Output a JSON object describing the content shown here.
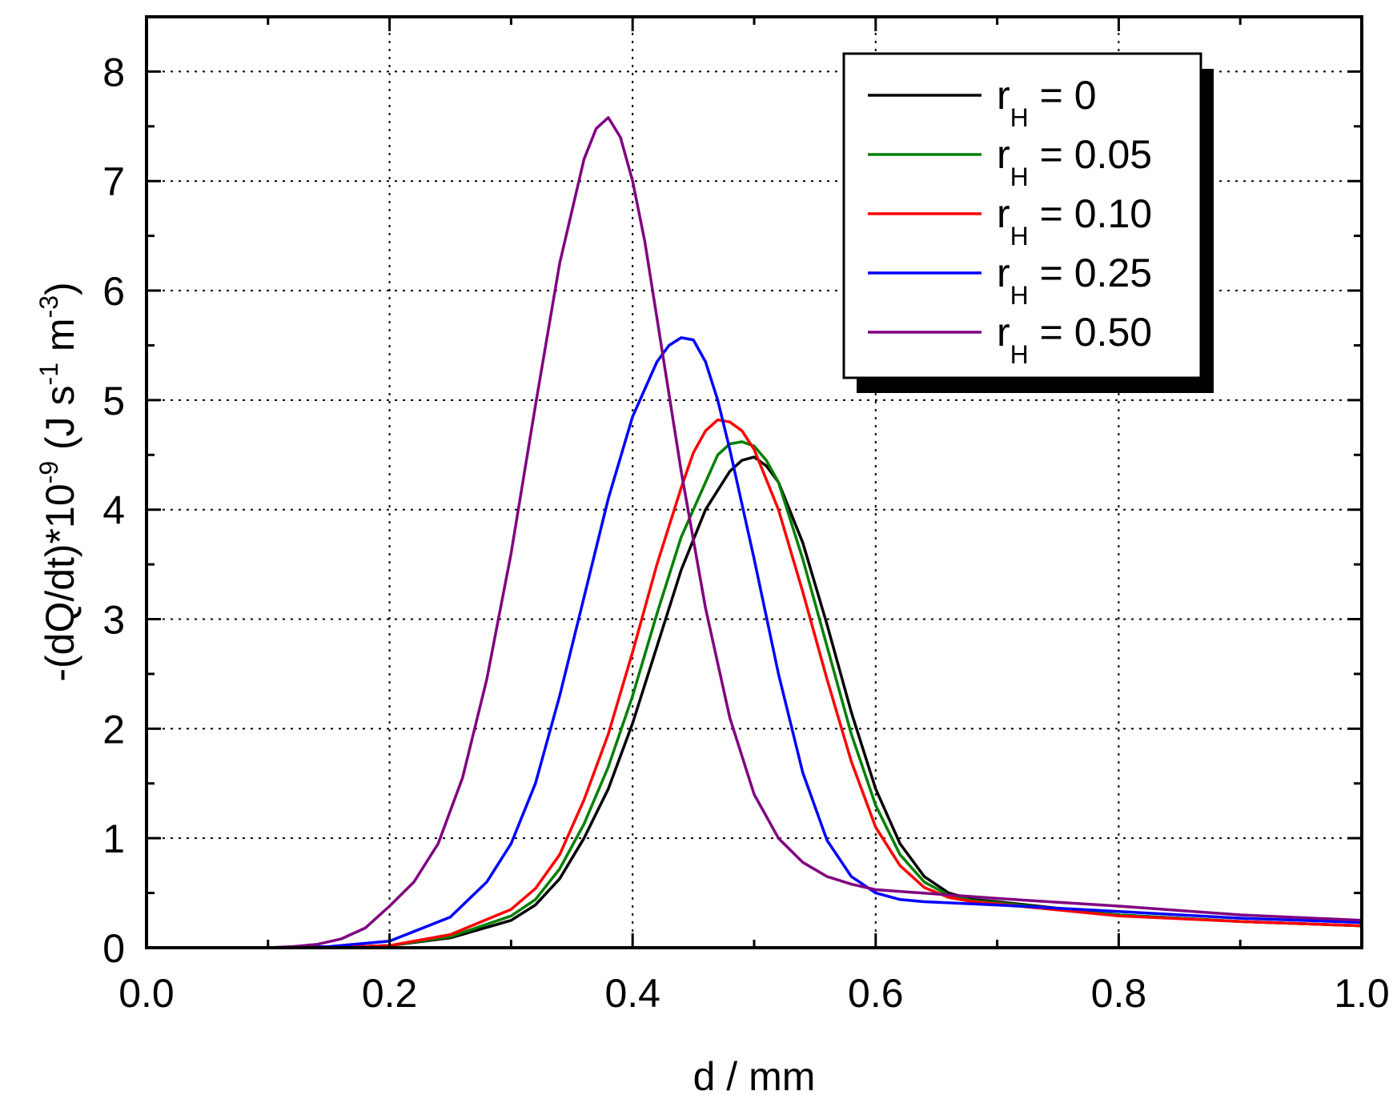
{
  "chart_data": {
    "type": "line",
    "xlabel": "d / mm",
    "ylabel": {
      "base": "-(dQ/dt)*10",
      "exp1": "-9",
      "mid": " (J s",
      "exp2": "-1",
      "mid2": " m",
      "exp3": "-3",
      "end": ")"
    },
    "xlim": [
      0.0,
      1.0
    ],
    "ylim": [
      0,
      8.5
    ],
    "xticks": [
      0.0,
      0.2,
      0.4,
      0.6,
      0.8,
      1.0
    ],
    "xtick_labels": [
      "0.0",
      "0.2",
      "0.4",
      "0.6",
      "0.8",
      "1.0"
    ],
    "yticks": [
      0,
      1,
      2,
      3,
      4,
      5,
      6,
      7,
      8
    ],
    "ytick_labels": [
      "0",
      "1",
      "2",
      "3",
      "4",
      "5",
      "6",
      "7",
      "8"
    ],
    "grid": true,
    "legend_position": "top-right",
    "series": [
      {
        "name": "r_H = 0",
        "label_base": "r",
        "label_sub": "H",
        "label_rest": " = 0",
        "color": "#000000",
        "x": [
          0.0,
          0.1,
          0.15,
          0.2,
          0.25,
          0.3,
          0.32,
          0.34,
          0.36,
          0.38,
          0.4,
          0.42,
          0.44,
          0.46,
          0.48,
          0.49,
          0.5,
          0.51,
          0.52,
          0.54,
          0.56,
          0.58,
          0.6,
          0.62,
          0.64,
          0.66,
          0.68,
          0.7,
          0.8,
          0.9,
          1.0
        ],
        "y": [
          0.0,
          0.0,
          0.0,
          0.02,
          0.09,
          0.25,
          0.39,
          0.63,
          1.0,
          1.45,
          2.05,
          2.75,
          3.45,
          4.0,
          4.35,
          4.45,
          4.48,
          4.4,
          4.25,
          3.7,
          2.95,
          2.15,
          1.45,
          0.95,
          0.65,
          0.5,
          0.44,
          0.42,
          0.3,
          0.24,
          0.2
        ]
      },
      {
        "name": "r_H = 0.05",
        "label_base": "r",
        "label_sub": "H",
        "label_rest": " = 0.05",
        "color": "#008000",
        "x": [
          0.0,
          0.1,
          0.15,
          0.2,
          0.25,
          0.3,
          0.32,
          0.34,
          0.36,
          0.38,
          0.4,
          0.42,
          0.44,
          0.46,
          0.47,
          0.48,
          0.49,
          0.5,
          0.51,
          0.52,
          0.54,
          0.56,
          0.58,
          0.6,
          0.62,
          0.64,
          0.66,
          0.68,
          0.7,
          0.8,
          0.9,
          1.0
        ],
        "y": [
          0.0,
          0.0,
          0.0,
          0.02,
          0.1,
          0.29,
          0.44,
          0.72,
          1.13,
          1.65,
          2.3,
          3.05,
          3.75,
          4.25,
          4.5,
          4.6,
          4.62,
          4.58,
          4.45,
          4.25,
          3.55,
          2.75,
          1.95,
          1.3,
          0.85,
          0.6,
          0.48,
          0.43,
          0.41,
          0.3,
          0.24,
          0.2
        ]
      },
      {
        "name": "r_H = 0.10",
        "label_base": "r",
        "label_sub": "H",
        "label_rest": " = 0.10",
        "color": "#ff0000",
        "x": [
          0.0,
          0.1,
          0.15,
          0.2,
          0.25,
          0.3,
          0.32,
          0.34,
          0.36,
          0.38,
          0.4,
          0.42,
          0.44,
          0.45,
          0.46,
          0.47,
          0.48,
          0.49,
          0.5,
          0.52,
          0.54,
          0.56,
          0.58,
          0.6,
          0.62,
          0.64,
          0.66,
          0.68,
          0.7,
          0.8,
          0.9,
          1.0
        ],
        "y": [
          0.0,
          0.0,
          0.0,
          0.02,
          0.12,
          0.35,
          0.54,
          0.85,
          1.35,
          1.95,
          2.7,
          3.5,
          4.2,
          4.52,
          4.72,
          4.82,
          4.8,
          4.72,
          4.55,
          4.0,
          3.25,
          2.45,
          1.7,
          1.1,
          0.75,
          0.55,
          0.46,
          0.42,
          0.4,
          0.29,
          0.24,
          0.2
        ]
      },
      {
        "name": "r_H = 0.25",
        "label_base": "r",
        "label_sub": "H",
        "label_rest": " = 0.25",
        "color": "#0000ff",
        "x": [
          0.0,
          0.1,
          0.15,
          0.2,
          0.25,
          0.28,
          0.3,
          0.32,
          0.34,
          0.36,
          0.38,
          0.4,
          0.42,
          0.43,
          0.44,
          0.45,
          0.46,
          0.47,
          0.48,
          0.5,
          0.52,
          0.54,
          0.56,
          0.58,
          0.6,
          0.62,
          0.64,
          0.66,
          0.7,
          0.8,
          0.9,
          1.0
        ],
        "y": [
          0.0,
          0.0,
          0.01,
          0.06,
          0.28,
          0.6,
          0.95,
          1.5,
          2.3,
          3.2,
          4.1,
          4.85,
          5.35,
          5.5,
          5.57,
          5.55,
          5.35,
          5.0,
          4.55,
          3.55,
          2.5,
          1.6,
          0.98,
          0.65,
          0.5,
          0.44,
          0.42,
          0.41,
          0.39,
          0.33,
          0.27,
          0.23
        ]
      },
      {
        "name": "r_H = 0.50",
        "label_base": "r",
        "label_sub": "H",
        "label_rest": " = 0.50",
        "color": "#800080",
        "x": [
          0.0,
          0.1,
          0.12,
          0.14,
          0.16,
          0.18,
          0.2,
          0.22,
          0.24,
          0.26,
          0.28,
          0.3,
          0.32,
          0.34,
          0.36,
          0.37,
          0.38,
          0.39,
          0.4,
          0.41,
          0.42,
          0.44,
          0.46,
          0.48,
          0.5,
          0.52,
          0.54,
          0.56,
          0.58,
          0.6,
          0.7,
          0.8,
          0.9,
          1.0
        ],
        "y": [
          0.0,
          0.0,
          0.01,
          0.03,
          0.08,
          0.18,
          0.38,
          0.6,
          0.95,
          1.55,
          2.45,
          3.6,
          4.95,
          6.25,
          7.2,
          7.48,
          7.58,
          7.4,
          7.0,
          6.45,
          5.75,
          4.35,
          3.1,
          2.1,
          1.4,
          1.0,
          0.78,
          0.65,
          0.58,
          0.53,
          0.45,
          0.38,
          0.3,
          0.25
        ]
      }
    ]
  }
}
